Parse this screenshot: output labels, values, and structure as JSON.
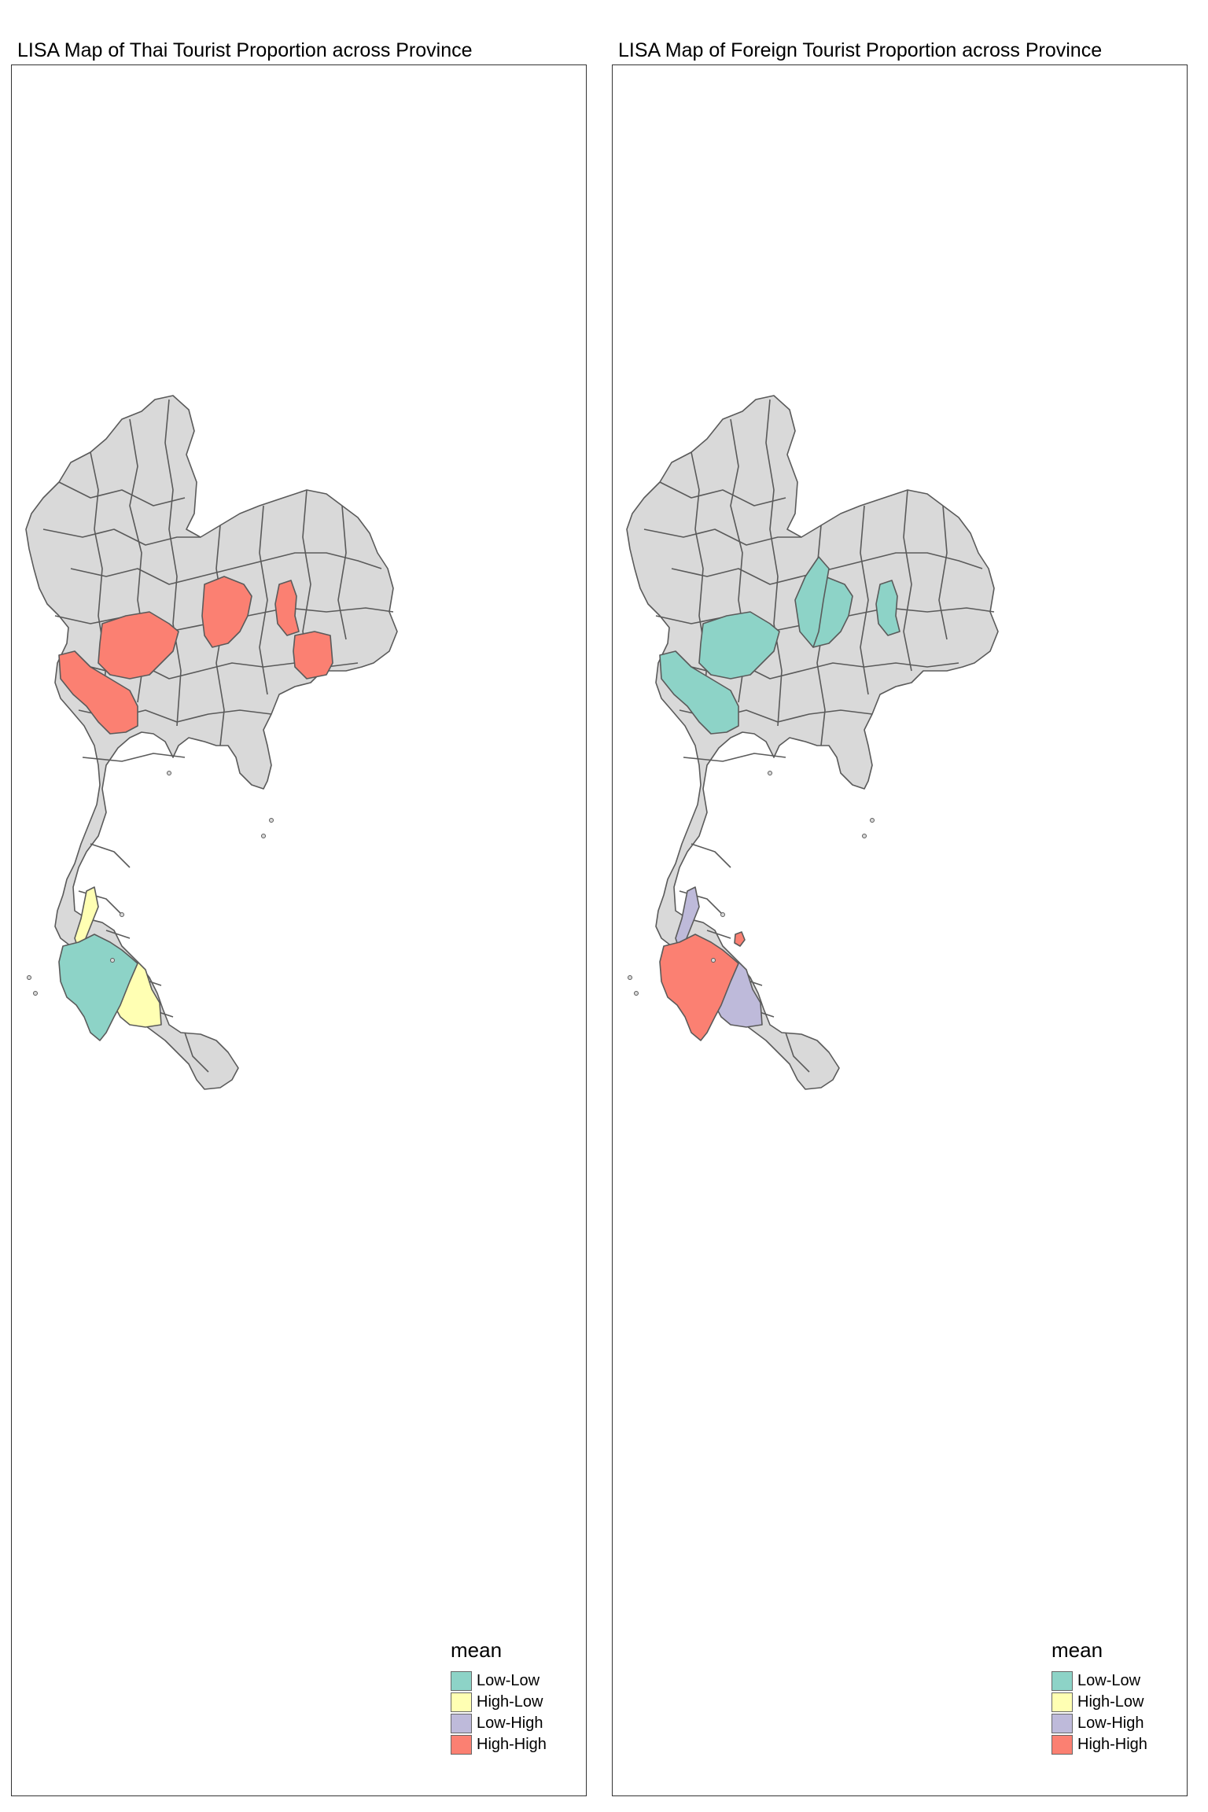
{
  "maps": [
    {
      "title": "LISA Map of Thai Tourist Proportion across Province",
      "legend_title": "mean",
      "legend": [
        {
          "label": "Low-Low",
          "color": "#8dd3c7"
        },
        {
          "label": "High-Low",
          "color": "#ffffb3"
        },
        {
          "label": "Low-High",
          "color": "#bebada"
        },
        {
          "label": "High-High",
          "color": "#fb8072"
        }
      ],
      "highlighted_regions": [
        {
          "category": "High-High",
          "area": "western-north"
        },
        {
          "category": "High-High",
          "area": "central-north"
        },
        {
          "category": "High-High",
          "area": "northeast-1"
        },
        {
          "category": "High-High",
          "area": "northeast-2"
        },
        {
          "category": "High-High",
          "area": "west"
        },
        {
          "category": "High-Low",
          "area": "south-west-coast"
        },
        {
          "category": "High-Low",
          "area": "south-east-coast"
        },
        {
          "category": "Low-Low",
          "area": "south-west-cluster"
        }
      ]
    },
    {
      "title": "LISA Map of Foreign Tourist Proportion across Province",
      "legend_title": "mean",
      "legend": [
        {
          "label": "Low-Low",
          "color": "#8dd3c7"
        },
        {
          "label": "High-Low",
          "color": "#ffffb3"
        },
        {
          "label": "Low-High",
          "color": "#bebada"
        },
        {
          "label": "High-High",
          "color": "#fb8072"
        }
      ],
      "highlighted_regions": [
        {
          "category": "Low-Low",
          "area": "western-north"
        },
        {
          "category": "Low-Low",
          "area": "west"
        },
        {
          "category": "Low-Low",
          "area": "central-north"
        },
        {
          "category": "Low-Low",
          "area": "north-central-2"
        },
        {
          "category": "Low-Low",
          "area": "northeast-1"
        },
        {
          "category": "Low-High",
          "area": "south-west-coast"
        },
        {
          "category": "Low-High",
          "area": "south-east-coast"
        },
        {
          "category": "High-High",
          "area": "south-west-cluster"
        },
        {
          "category": "High-High",
          "area": "south-island"
        }
      ]
    }
  ],
  "colors": {
    "base_province": "#d9d9d9",
    "border": "#5a5a5a"
  }
}
